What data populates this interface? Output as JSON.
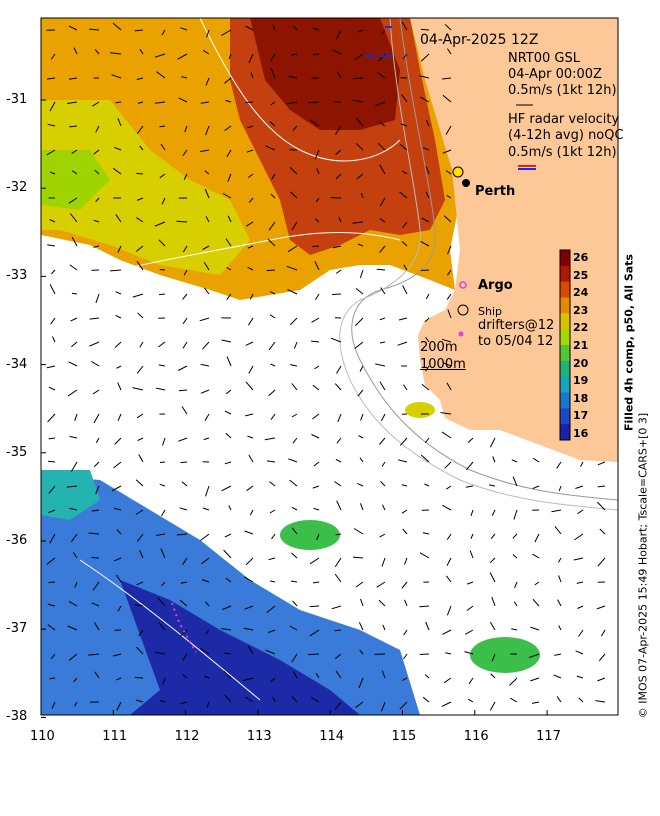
{
  "map": {
    "timestamp": "04-Apr-2025 12Z",
    "gsl_title": "NRT00 GSL",
    "gsl_time": "04-Apr 00:00Z",
    "gsl_scale": "0.5m/s (1kt 12h)",
    "hf_title": "HF radar velocity",
    "hf_avg": "(4-12h avg) noQC",
    "hf_scale": "0.5m/s (1kt 12h)",
    "city_label": "Perth",
    "argo_label": "Argo",
    "ship_label": "Ship",
    "drifters_label": "drifters@12",
    "drifters_to": "to 05/04 12",
    "contour_200": "200m",
    "contour_1000": "1000m",
    "footer": "© IMOS 07-Apr-2025 15:49 Hobart; Tscale=CARS+[0 3]",
    "land_color": "#fcc897",
    "argo_color": "#e040e0",
    "drifter_color": "#e040e0"
  },
  "x_ticks": [
    "110",
    "111",
    "112",
    "113",
    "114",
    "115",
    "116",
    "117"
  ],
  "y_ticks": [
    "-31",
    "-32",
    "-33",
    "-34",
    "-35",
    "-36",
    "-37",
    "-38"
  ],
  "colorbar": {
    "title": "Filled 4h comp, p50, All Sats",
    "ticks": [
      "26",
      "25",
      "24",
      "23",
      "22",
      "21",
      "20",
      "19",
      "18",
      "17",
      "16"
    ],
    "colors": [
      "#800000",
      "#b21700",
      "#d84a00",
      "#e58a00",
      "#d7c100",
      "#a6d800",
      "#53c633",
      "#1fb27a",
      "#16a3bd",
      "#1777cf",
      "#1a48c8",
      "#1a22a8"
    ]
  }
}
